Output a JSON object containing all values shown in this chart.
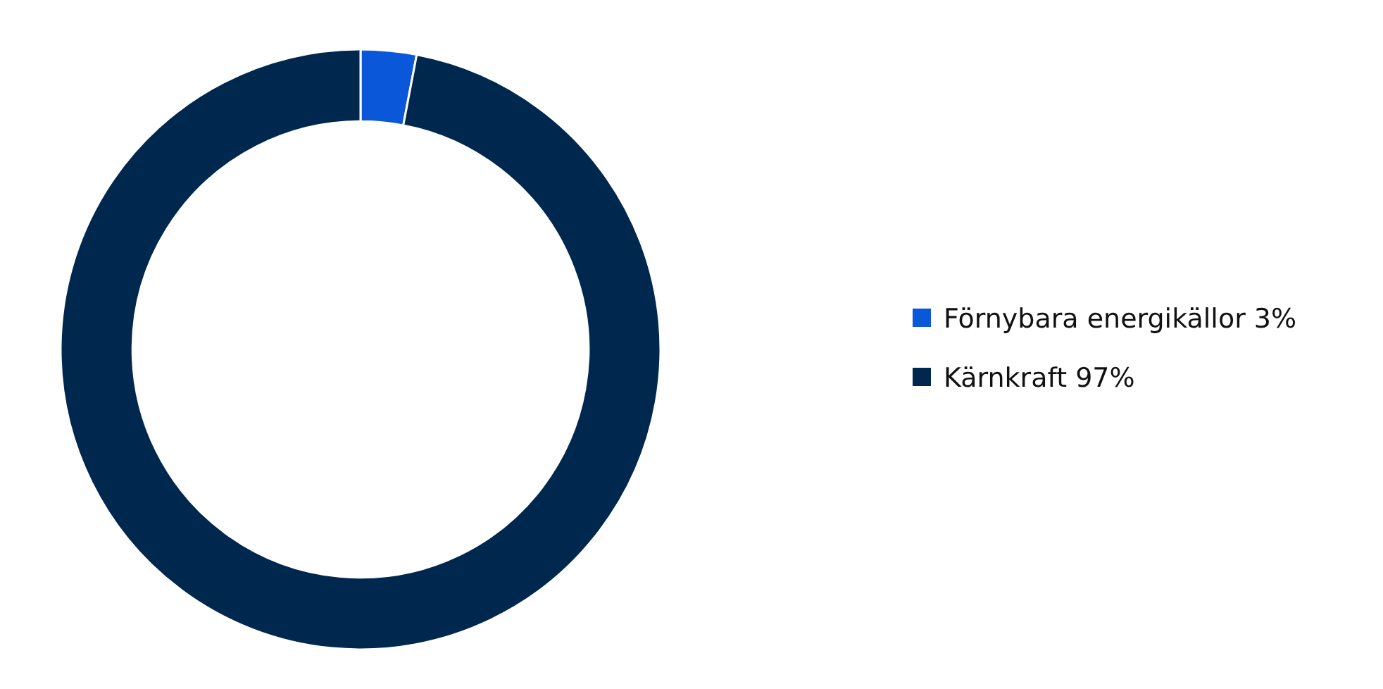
{
  "chart_data": {
    "type": "donut",
    "categories": [
      "Förnybara energikällor",
      "Kärnkraft"
    ],
    "values": [
      3,
      97
    ],
    "value_labels": [
      "3%",
      "97%"
    ],
    "colors": [
      "#0b57d9",
      "#00284f"
    ],
    "legend": "right"
  }
}
